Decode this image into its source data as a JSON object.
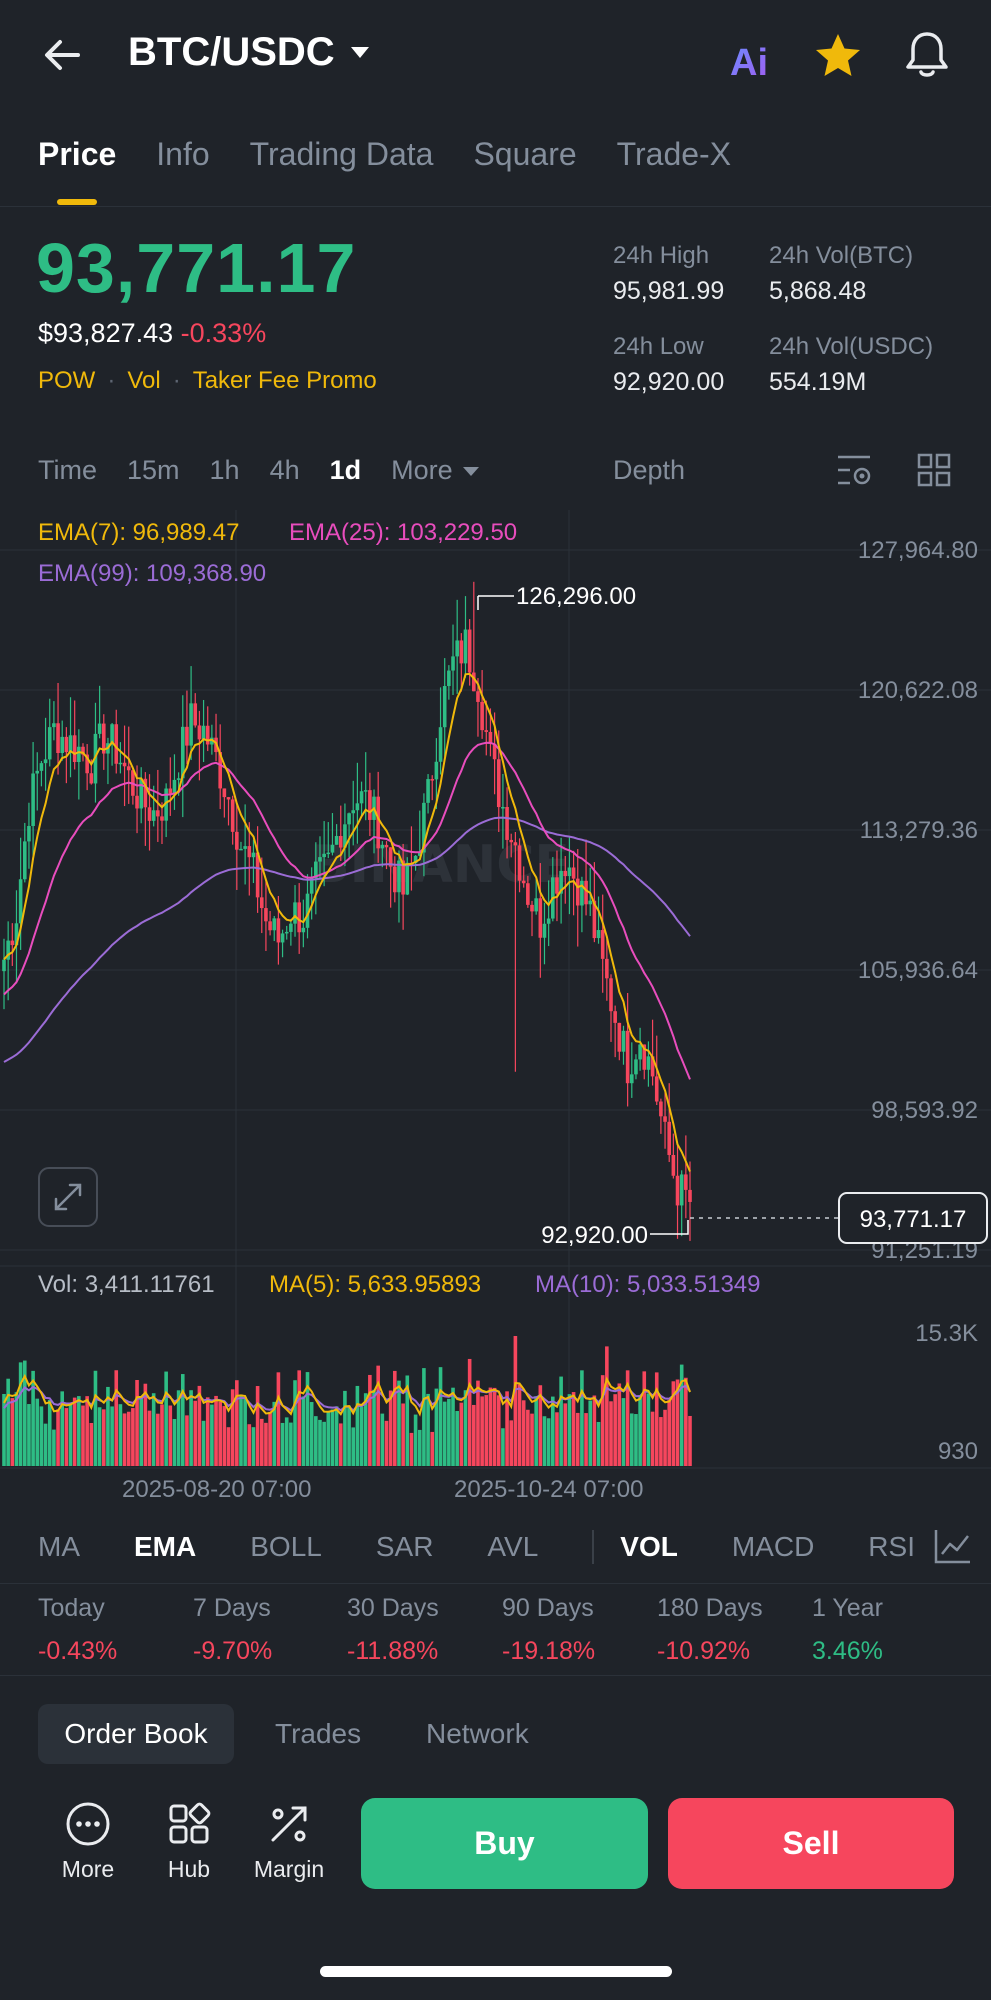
{
  "header": {
    "pair": "BTC/USDC",
    "ai_label": "Ai"
  },
  "tabs": [
    "Price",
    "Info",
    "Trading Data",
    "Square",
    "Trade-X"
  ],
  "ticker": {
    "price": "93,771.17",
    "usd_price": "$93,827.43",
    "change": "-0.33%",
    "tags": [
      "POW",
      "Vol",
      "Taker Fee Promo"
    ],
    "high_label": "24h High",
    "high": "95,981.99",
    "vol_btc_label": "24h Vol(BTC)",
    "vol_btc": "5,868.48",
    "low_label": "24h Low",
    "low": "92,920.00",
    "vol_usdc_label": "24h Vol(USDC)",
    "vol_usdc": "554.19M"
  },
  "intervals": [
    "Time",
    "15m",
    "1h",
    "4h",
    "1d",
    "More"
  ],
  "depth_label": "Depth",
  "chart_data": {
    "type": "candlestick",
    "ema": {
      "ema7_label": "EMA(7): 96,989.47",
      "ema25_label": "EMA(25): 103,229.50",
      "ema99_label": "EMA(99): 109,368.90"
    },
    "y_ticks": [
      "127,964.80",
      "120,622.08",
      "113,279.36",
      "105,936.64",
      "98,593.92",
      "91,251.19"
    ],
    "y_tick_values": [
      127964.8,
      120622.08,
      113279.36,
      105936.64,
      98593.92,
      91251.19
    ],
    "high_marker": "126,296.00",
    "low_marker": "92,920.00",
    "last_price": "93,771.17",
    "watermark": "BINANCE",
    "close_path": [
      [
        0,
        106500
      ],
      [
        3,
        109000
      ],
      [
        6,
        114500
      ],
      [
        9,
        117000
      ],
      [
        12,
        118500
      ],
      [
        15,
        118000
      ],
      [
        18,
        117500
      ],
      [
        21,
        116800
      ],
      [
        24,
        118200
      ],
      [
        27,
        117500
      ],
      [
        30,
        116000
      ],
      [
        33,
        114800
      ],
      [
        36,
        114200
      ],
      [
        39,
        114800
      ],
      [
        42,
        117000
      ],
      [
        45,
        119000
      ],
      [
        48,
        118500
      ],
      [
        51,
        117000
      ],
      [
        54,
        115000
      ],
      [
        57,
        112500
      ],
      [
        60,
        111000
      ],
      [
        63,
        108500
      ],
      [
        66,
        107500
      ],
      [
        69,
        109000
      ],
      [
        72,
        108700
      ],
      [
        75,
        110500
      ],
      [
        78,
        111500
      ],
      [
        81,
        113500
      ],
      [
        84,
        115000
      ],
      [
        87,
        114800
      ],
      [
        90,
        113500
      ],
      [
        93,
        111500
      ],
      [
        96,
        110000
      ],
      [
        99,
        112000
      ],
      [
        102,
        115000
      ],
      [
        105,
        119500
      ],
      [
        108,
        122000
      ],
      [
        111,
        123000
      ],
      [
        114,
        121000
      ],
      [
        117,
        117000
      ],
      [
        120,
        114500
      ],
      [
        123,
        112500
      ],
      [
        126,
        110000
      ],
      [
        129,
        108500
      ],
      [
        132,
        110500
      ],
      [
        135,
        111800
      ],
      [
        138,
        110500
      ],
      [
        141,
        109000
      ],
      [
        144,
        106000
      ],
      [
        147,
        103500
      ],
      [
        150,
        101000
      ],
      [
        153,
        102500
      ],
      [
        156,
        100500
      ],
      [
        159,
        97000
      ],
      [
        162,
        94500
      ],
      [
        165,
        93771
      ]
    ],
    "volume": {
      "vol_label": "Vol: 3,411.11761",
      "ma5_label": "MA(5): 5,633.95893",
      "ma10_label": "MA(10): 5,033.51349",
      "y_ticks": [
        "15.3K",
        "930"
      ]
    },
    "x_ticks": [
      "2025-08-20 07:00",
      "2025-10-24 07:00"
    ]
  },
  "indicators": [
    "MA",
    "EMA",
    "BOLL",
    "SAR",
    "AVL",
    "VOL",
    "MACD",
    "RSI"
  ],
  "performance": [
    {
      "label": "Today",
      "value": "-0.43%",
      "dir": "down"
    },
    {
      "label": "7 Days",
      "value": "-9.70%",
      "dir": "down"
    },
    {
      "label": "30 Days",
      "value": "-11.88%",
      "dir": "down"
    },
    {
      "label": "90 Days",
      "value": "-19.18%",
      "dir": "down"
    },
    {
      "label": "180 Days",
      "value": "-10.92%",
      "dir": "down"
    },
    {
      "label": "1 Year",
      "value": "3.46%",
      "dir": "up"
    }
  ],
  "bottom_tabs": [
    "Order Book",
    "Trades",
    "Network"
  ],
  "actions": [
    "More",
    "Hub",
    "Margin"
  ],
  "buy_label": "Buy",
  "sell_label": "Sell",
  "colors": {
    "up": "#2ebd85",
    "down": "#f6465d",
    "accent": "#f0b90b",
    "ema25": "#e84dbd",
    "ema99": "#9b6cd6"
  }
}
